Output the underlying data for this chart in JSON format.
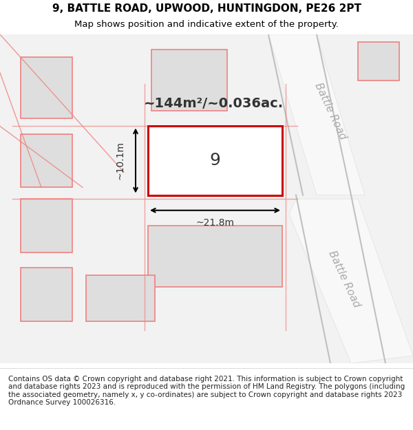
{
  "title_line1": "9, BATTLE ROAD, UPWOOD, HUNTINGDON, PE26 2PT",
  "title_line2": "Map shows position and indicative extent of the property.",
  "footer_text": "Contains OS data © Crown copyright and database right 2021. This information is subject to Crown copyright and database rights 2023 and is reproduced with the permission of HM Land Registry. The polygons (including the associated geometry, namely x, y co-ordinates) are subject to Crown copyright and database rights 2023 Ordnance Survey 100026316.",
  "area_label": "~144m²/~0.036ac.",
  "property_number": "9",
  "dim_width": "~21.8m",
  "dim_height": "~10.1m",
  "road_label": "Battle Road",
  "background_color": "#f5f5f5",
  "map_background": "#ffffff",
  "plot_fill": "#ffffff",
  "plot_edge_color": "#cc0000",
  "other_plot_fill": "#e8e8e8",
  "other_plot_edge": "#f08080",
  "road_stripe_color": "#ffffff",
  "title_fontsize": 11,
  "subtitle_fontsize": 9.5,
  "footer_fontsize": 7.5
}
